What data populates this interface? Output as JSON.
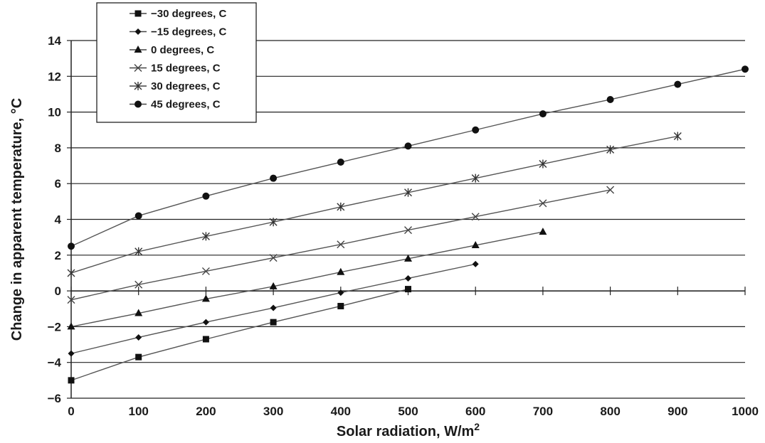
{
  "chart_data": {
    "type": "line",
    "title": "",
    "xlabel": "Solar radiation, W/m",
    "xlabel_sup": "2",
    "ylabel": "Change in apparent temperature, °C",
    "xlim": [
      0,
      1000
    ],
    "ylim": [
      -6,
      14
    ],
    "x_ticks": [
      "0",
      "100",
      "200",
      "300",
      "400",
      "500",
      "600",
      "700",
      "800",
      "900",
      "1000"
    ],
    "y_ticks": [
      "−6",
      "−4",
      "−2",
      "0",
      "2",
      "4",
      "6",
      "8",
      "10",
      "12",
      "14"
    ],
    "grid": "horizontal",
    "legend_position": "top-left",
    "series": [
      {
        "name": "−30 degrees, C",
        "marker": "square",
        "x": [
          0,
          100,
          200,
          300,
          400,
          500
        ],
        "values": [
          -5.0,
          -3.7,
          -2.7,
          -1.75,
          -0.85,
          0.1
        ]
      },
      {
        "name": "−15 degrees, C",
        "marker": "diamond",
        "x": [
          0,
          100,
          200,
          300,
          400,
          500,
          600
        ],
        "values": [
          -3.5,
          -2.6,
          -1.75,
          -0.95,
          -0.1,
          0.7,
          1.5
        ]
      },
      {
        "name": "0 degrees, C",
        "marker": "triangle",
        "x": [
          0,
          100,
          200,
          300,
          400,
          500,
          600,
          700
        ],
        "values": [
          -2.0,
          -1.25,
          -0.45,
          0.25,
          1.05,
          1.8,
          2.55,
          3.3
        ]
      },
      {
        "name": "15 degrees, C",
        "marker": "x",
        "x": [
          0,
          100,
          200,
          300,
          400,
          500,
          600,
          700,
          800
        ],
        "values": [
          -0.5,
          0.35,
          1.1,
          1.85,
          2.6,
          3.4,
          4.15,
          4.9,
          5.65
        ]
      },
      {
        "name": "30 degrees, C",
        "marker": "asterisk",
        "x": [
          0,
          100,
          200,
          300,
          400,
          500,
          600,
          700,
          800,
          900
        ],
        "values": [
          1.0,
          2.2,
          3.05,
          3.85,
          4.7,
          5.5,
          6.3,
          7.1,
          7.9,
          8.65
        ]
      },
      {
        "name": "45 degrees, C",
        "marker": "circle",
        "x": [
          0,
          100,
          200,
          300,
          400,
          500,
          600,
          700,
          800,
          900,
          1000
        ],
        "values": [
          2.5,
          4.2,
          5.3,
          6.3,
          7.2,
          8.1,
          9.0,
          9.9,
          10.7,
          11.55,
          12.4
        ]
      }
    ]
  }
}
